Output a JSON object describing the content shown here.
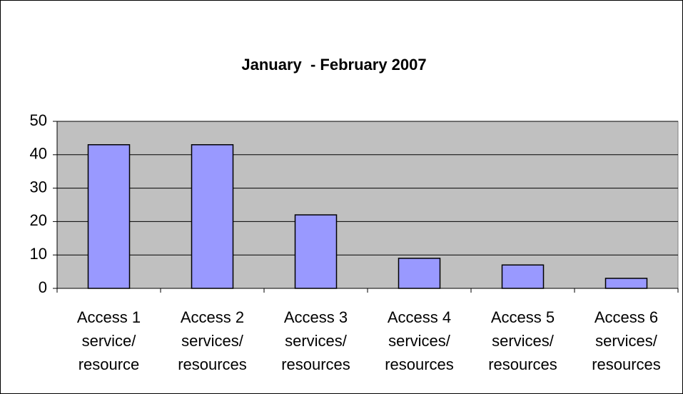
{
  "chart_data": {
    "type": "bar",
    "title": "January  - February 2007",
    "categories": [
      [
        "Access 1",
        "service/",
        "resource"
      ],
      [
        "Access 2",
        "services/",
        "resources"
      ],
      [
        "Access 3",
        "services/",
        "resources"
      ],
      [
        "Access 4",
        "services/",
        "resources"
      ],
      [
        "Access 5",
        "services/",
        "resources"
      ],
      [
        "Access 6",
        "services/",
        "resources"
      ]
    ],
    "values": [
      43,
      43,
      22,
      9,
      7,
      3
    ],
    "color": "#9999ff",
    "ylim": [
      0,
      50
    ],
    "yticks": [
      0,
      10,
      20,
      30,
      40,
      50
    ],
    "grid": true
  }
}
